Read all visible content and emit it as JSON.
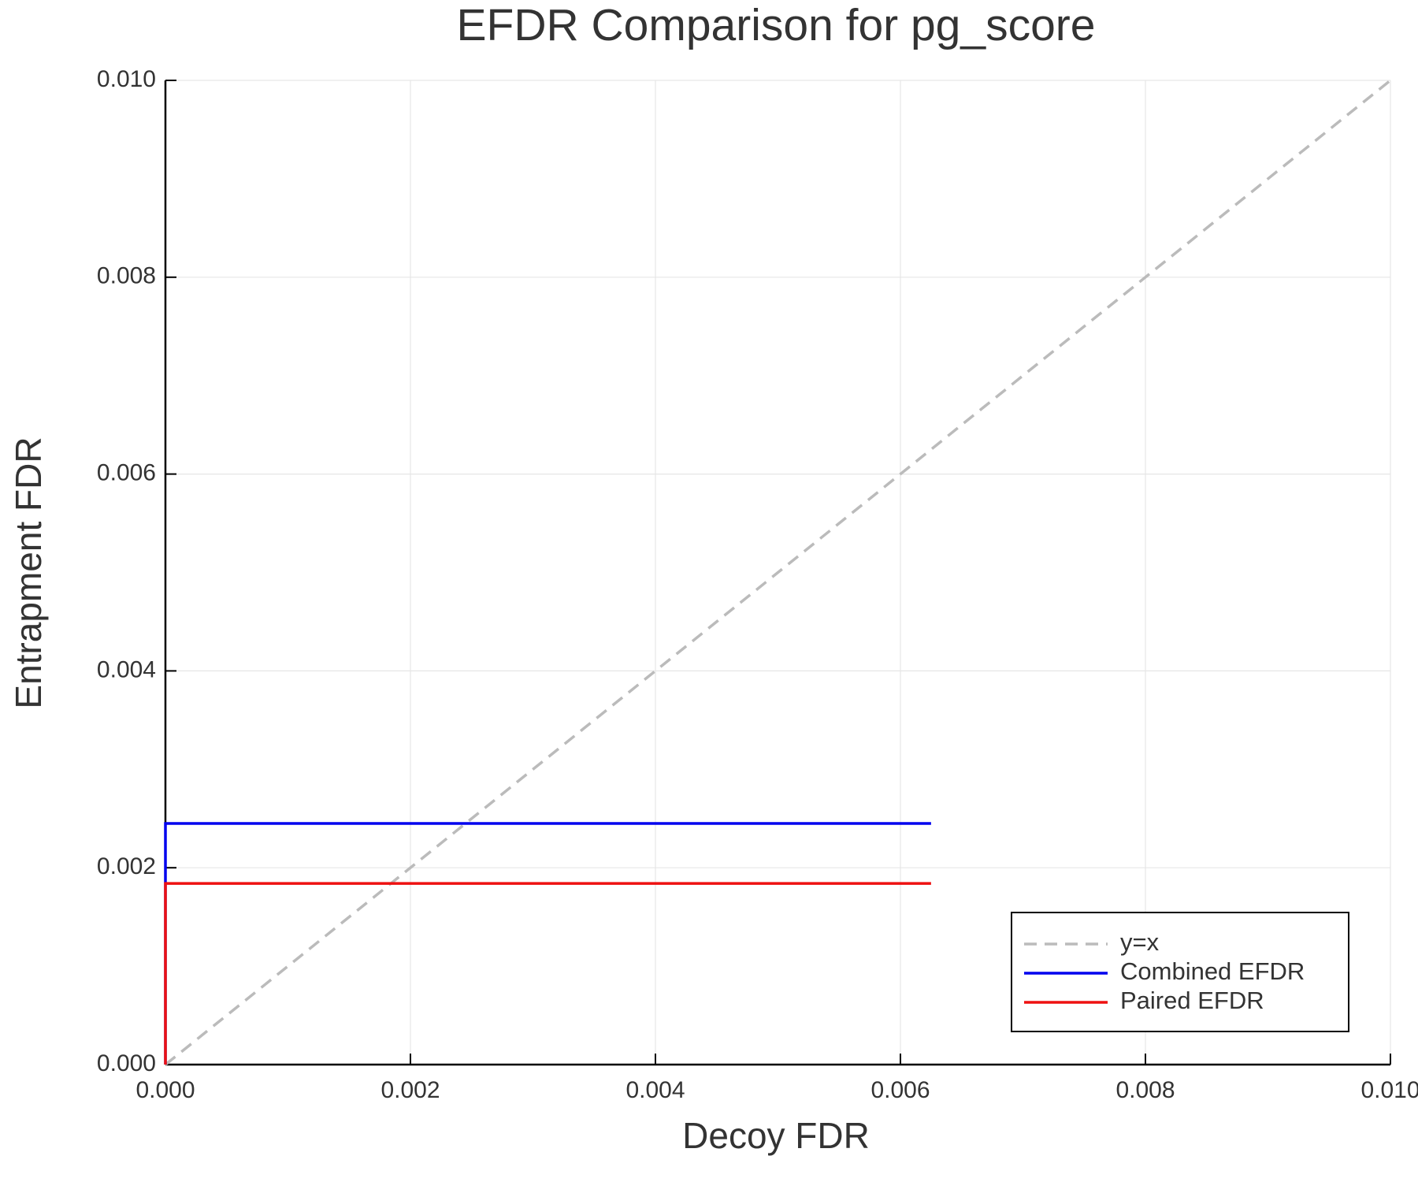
{
  "chart_data": {
    "type": "line",
    "title": "EFDR Comparison for pg_score",
    "x_label": "Decoy FDR",
    "y_label": "Entrapment FDR",
    "xlim": [
      0,
      0.01
    ],
    "ylim": [
      0,
      0.01
    ],
    "xticks": [
      {
        "value": 0,
        "label": "0.000"
      },
      {
        "value": 0.002,
        "label": "0.002"
      },
      {
        "value": 0.004,
        "label": "0.004"
      },
      {
        "value": 0.006,
        "label": "0.006"
      },
      {
        "value": 0.008,
        "label": "0.008"
      },
      {
        "value": 0.01,
        "label": "0.010"
      }
    ],
    "yticks": [
      {
        "value": 0,
        "label": "0.000"
      },
      {
        "value": 0.002,
        "label": "0.002"
      },
      {
        "value": 0.004,
        "label": "0.004"
      },
      {
        "value": 0.006,
        "label": "0.006"
      },
      {
        "value": 0.008,
        "label": "0.008"
      },
      {
        "value": 0.01,
        "label": "0.010"
      }
    ],
    "grid": true,
    "legend": "lower right",
    "series": [
      {
        "name": "y=x",
        "color": "#bbbbbb",
        "dash": "dashed",
        "x": [
          0,
          0.01
        ],
        "values": [
          0,
          0.01
        ]
      },
      {
        "name": "Combined EFDR",
        "color": "#0000ee",
        "dash": "solid",
        "x": [
          0,
          0,
          0.00625
        ],
        "values": [
          0,
          0.00245,
          0.00245
        ]
      },
      {
        "name": "Paired EFDR",
        "color": "#ee1111",
        "dash": "solid",
        "x": [
          0,
          0,
          0.00625
        ],
        "values": [
          0,
          0.00184,
          0.00184
        ]
      }
    ]
  }
}
